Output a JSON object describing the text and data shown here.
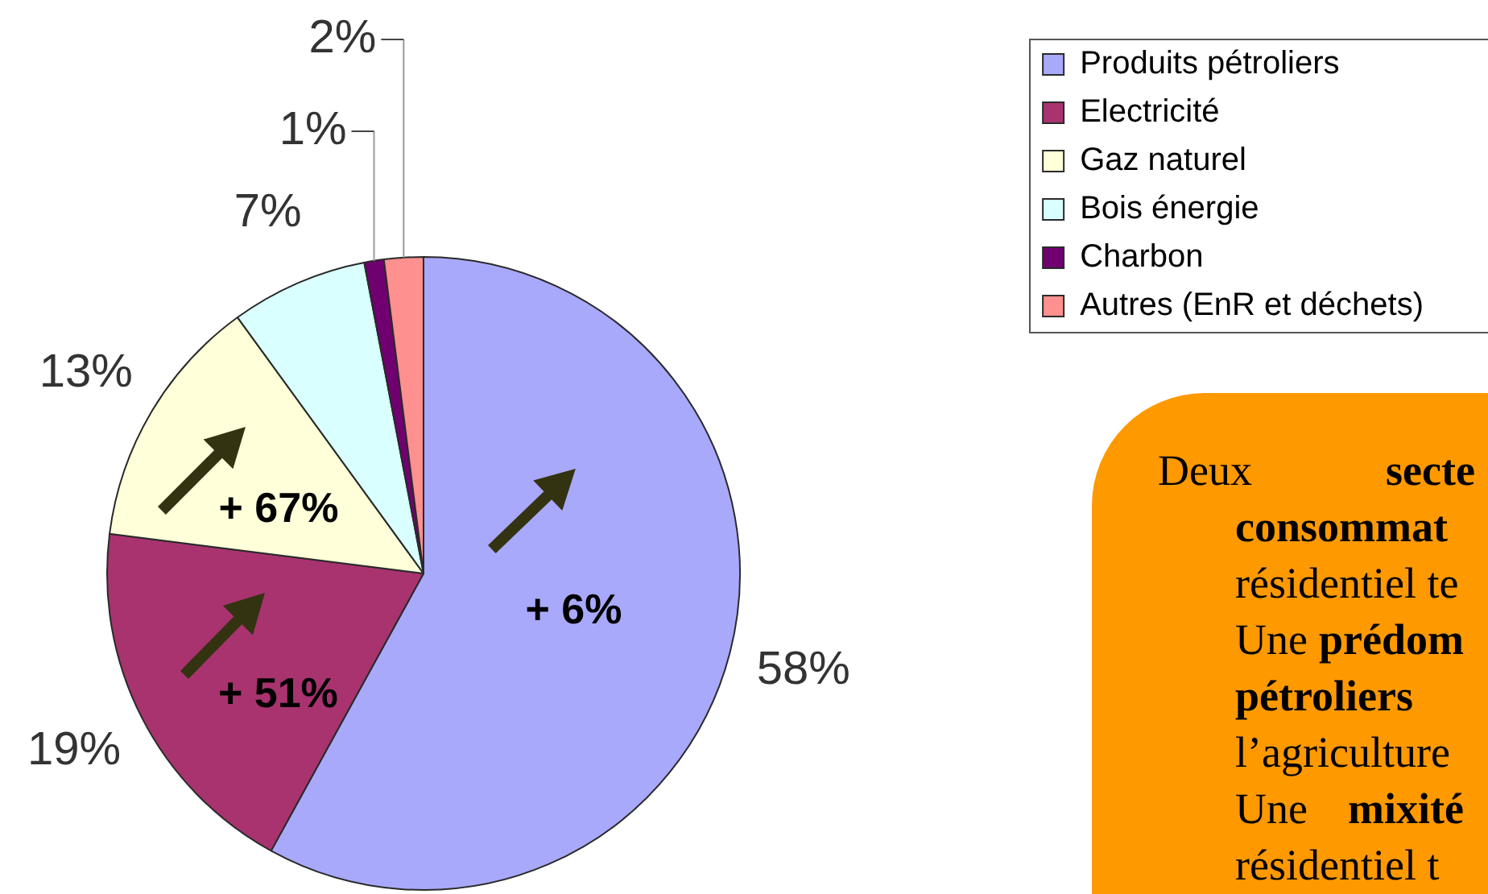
{
  "chart_data": {
    "type": "pie",
    "categories": [
      "Produits pétroliers",
      "Electricité",
      "Gaz naturel",
      "Bois énergie",
      "Charbon",
      "Autres (EnR et déchets)"
    ],
    "values": [
      58,
      19,
      13,
      7,
      1,
      2
    ],
    "colors": [
      "#a9a9fb",
      "#a8336f",
      "#ffffd9",
      "#d9ffff",
      "#700070",
      "#ff9090"
    ],
    "value_labels": [
      "58%",
      "19%",
      "13%",
      "7%",
      "1%",
      "2%"
    ],
    "legend": "top right",
    "annotations": [
      {
        "text": "+ 6%",
        "x": "Produits pétroliers"
      },
      {
        "text": "+ 51%",
        "x": "Electricité"
      },
      {
        "text": "+ 67%",
        "x": "Gaz naturel"
      },
      "Deux",
      "secte",
      "consommat",
      "résidentiel te",
      "Une",
      "prédom",
      "pétroliers",
      "l’agriculture",
      "Une",
      "mixité",
      "résidentiel t"
    ]
  }
}
